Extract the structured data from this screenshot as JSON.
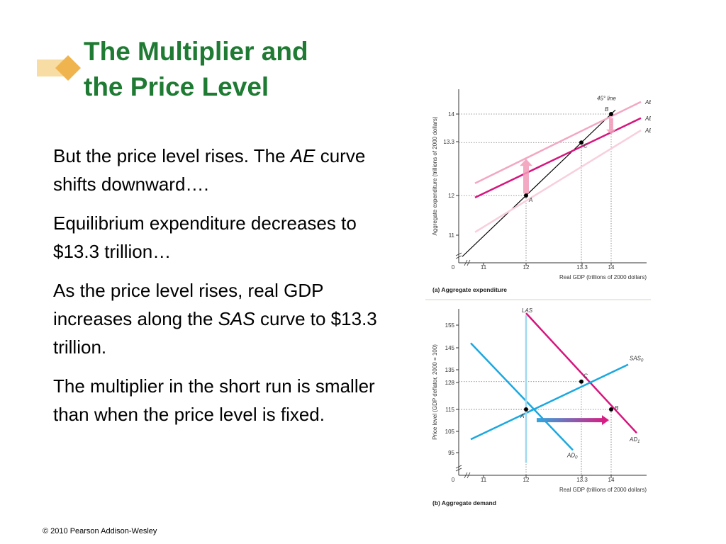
{
  "slide": {
    "title_line1": "The Multiplier and",
    "title_line2": "the Price Level",
    "copyright": "© 2010 Pearson Addison-Wesley",
    "accent_color": "#1f7a33",
    "logo_icon": "orange-diamond-arrow-icon"
  },
  "bullets": [
    {
      "parts": [
        {
          "t": "But the price level rises. The "
        },
        {
          "t": "AE",
          "i": true
        },
        {
          "t": " curve shifts downward…."
        }
      ]
    },
    {
      "parts": [
        {
          "t": "Equilibrium expenditure decreases to $13.3 trillion…"
        }
      ]
    },
    {
      "parts": [
        {
          "t": "As the price level rises, real GDP increases along the "
        },
        {
          "t": "SAS",
          "i": true
        },
        {
          "t": " curve to $13.3 trillion."
        }
      ]
    },
    {
      "parts": [
        {
          "t": "The multiplier in the short run is smaller than when the price level is fixed."
        }
      ]
    }
  ],
  "chart_data": [
    {
      "type": "line",
      "caption": "(a) Aggregate expenditure",
      "xlabel": "Real GDP (trillions of 2000 dollars)",
      "ylabel": "Aggregate expenditure (trillions of 2000 dollars)",
      "x_ticks": [
        "0",
        "11",
        "12",
        "13.3",
        "14"
      ],
      "y_ticks": [
        "11",
        "12",
        "13.3",
        "14"
      ],
      "xlim": [
        10.5,
        15.2
      ],
      "ylim": [
        10.5,
        14.6
      ],
      "series": [
        {
          "name": "45° line",
          "x": [
            10.5,
            14.1
          ],
          "y": [
            10.5,
            14.1
          ],
          "color": "#000000"
        },
        {
          "name": "AE",
          "sub": "1",
          "x": [
            10.8,
            14.7
          ],
          "y": [
            12.3,
            14.3
          ],
          "color": "#f2a7c3"
        },
        {
          "name": "AE",
          "sub": "2",
          "x": [
            10.8,
            14.7
          ],
          "y": [
            11.95,
            13.9
          ],
          "color": "#d6157d"
        },
        {
          "name": "AE",
          "sub": "0",
          "x": [
            10.8,
            14.7
          ],
          "y": [
            11.1,
            13.6
          ],
          "color": "#f8cfdd"
        }
      ],
      "points": [
        {
          "label": "A",
          "x": 12,
          "y": 12
        },
        {
          "label": "C",
          "x": 13.3,
          "y": 13.3
        },
        {
          "label": "B",
          "x": 14,
          "y": 14
        }
      ],
      "arrow_up": {
        "x": 12,
        "y_from": 12.05,
        "y_to": 12.9,
        "color": "#f29ab8"
      },
      "arrow_down": {
        "x": 14,
        "y_from": 13.9,
        "y_to": 13.5,
        "color": "#f29ab8"
      }
    },
    {
      "type": "line",
      "caption": "(b) Aggregate demand",
      "xlabel": "Real GDP (trillions of 2000 dollars)",
      "ylabel": "Price level (GDP deflator, 2000 = 100)",
      "x_ticks": [
        "0",
        "11",
        "12",
        "13.3",
        "14"
      ],
      "y_ticks": [
        "95",
        "105",
        "115",
        "128",
        "135",
        "145",
        "155"
      ],
      "xlim": [
        10.5,
        15.2
      ],
      "ylim": [
        90,
        162
      ],
      "series": [
        {
          "name": "AD",
          "sub": "0",
          "x": [
            10.7,
            13.1
          ],
          "y": [
            146,
            96
          ],
          "color": "#1aa8e0"
        },
        {
          "name": "AD",
          "sub": "1",
          "x": [
            12.0,
            14.6
          ],
          "y": [
            160,
            104
          ],
          "color": "#d6157d"
        },
        {
          "name": "SAS",
          "sub": "0",
          "x": [
            10.7,
            14.4
          ],
          "y": [
            101,
            136
          ],
          "color": "#1aa8e0"
        },
        {
          "name": "LAS",
          "x": [
            12,
            12
          ],
          "y": [
            90,
            159
          ],
          "color": "#9fd9ef"
        }
      ],
      "points": [
        {
          "label": "A",
          "x": 12,
          "y": 115
        },
        {
          "label": "C",
          "x": 13.3,
          "y": 128
        },
        {
          "label": "B",
          "x": 14,
          "y": 115
        }
      ],
      "arrow_right": {
        "y": 110,
        "x_from": 12.25,
        "x_to": 13.95
      }
    }
  ]
}
